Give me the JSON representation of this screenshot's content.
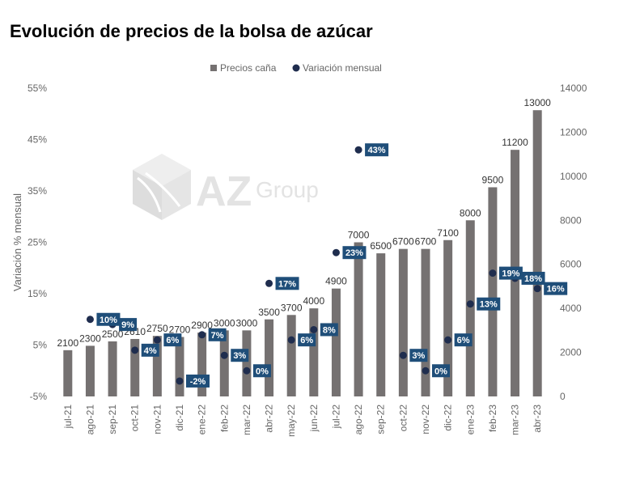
{
  "title": "Evolución de precios de la bolsa de azúcar",
  "colors": {
    "bar": "#757171",
    "dot": "#1f2d4e",
    "label_bg": "#1f4e79",
    "label_text": "#ffffff"
  },
  "watermark": {
    "brand": "AZ",
    "word": "Group",
    "icon": "cube-logo-icon"
  },
  "chart_data": {
    "type": "bar",
    "title": "",
    "legend": {
      "position": "top",
      "entries": [
        "Precios caña",
        "Variación mensual"
      ]
    },
    "categories": [
      "jul-21",
      "ago-21",
      "sep-21",
      "oct-21",
      "nov-21",
      "dic-21",
      "ene-22",
      "feb-22",
      "mar-22",
      "abr-22",
      "may-22",
      "jun-22",
      "jul-22",
      "ago-22",
      "sep-22",
      "oct-22",
      "nov-22",
      "dic-22",
      "ene-23",
      "feb-23",
      "mar-23",
      "abr-23"
    ],
    "series": [
      {
        "name": "Precios caña",
        "type": "bar",
        "axis": "right",
        "values": [
          2100,
          2300,
          2500,
          2610,
          2750,
          2700,
          2900,
          3000,
          3000,
          3500,
          3700,
          4000,
          4900,
          7000,
          6500,
          6700,
          6700,
          7100,
          8000,
          9500,
          11200,
          13000
        ],
        "labels": [
          "2100",
          "2300",
          "2500",
          "2610",
          "2750",
          "2700",
          "2900",
          "3000",
          "3000",
          "3500",
          "3700",
          "4000",
          "4900",
          "7000",
          "6500",
          "6700",
          "6700",
          "7100",
          "8000",
          "9500",
          "11200",
          "13000"
        ]
      },
      {
        "name": "Variación mensual",
        "type": "scatter",
        "axis": "left",
        "values": [
          null,
          10,
          9,
          4,
          6,
          -2,
          7,
          3,
          0,
          17,
          6,
          8,
          23,
          43,
          null,
          3,
          0,
          6,
          13,
          19,
          18,
          16
        ],
        "labels": [
          "",
          "10%",
          "9%",
          "4%",
          "6%",
          "-2%",
          "7%",
          "3%",
          "0%",
          "17%",
          "6%",
          "8%",
          "23%",
          "43%",
          "",
          "3%",
          "0%",
          "6%",
          "13%",
          "19%",
          "18%",
          "16%"
        ]
      }
    ],
    "left_axis": {
      "label": "Variación % mensual",
      "ylim": [
        -5,
        55
      ],
      "ticks": [
        "-5%",
        "5%",
        "15%",
        "25%",
        "35%",
        "45%",
        "55%"
      ]
    },
    "right_axis": {
      "label": "",
      "ylim": [
        0,
        14000
      ],
      "ticks": [
        "0",
        "2000",
        "4000",
        "6000",
        "8000",
        "10000",
        "12000",
        "14000"
      ]
    },
    "grid": false
  }
}
